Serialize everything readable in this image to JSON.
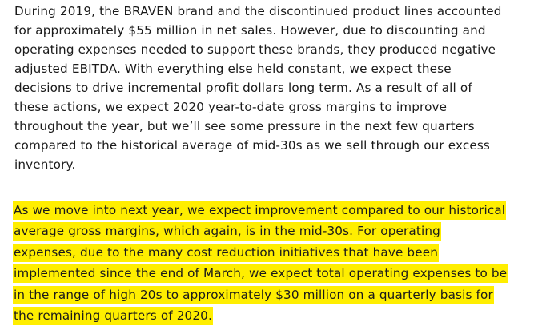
{
  "document": {
    "paragraph_1": {
      "lines": [
        "During 2019, the BRAVEN brand and the discontinued product lines accounted",
        "for approximately $55 million in net sales. However, due to discounting and",
        "operating expenses needed to support these brands, they produced negative",
        "adjusted EBITDA. With everything else held constant, we expect these",
        "decisions to drive incremental profit dollars long term. As a result of all of",
        "these actions, we expect 2020 year-to-date gross margins to improve",
        "throughout the year, but we’ll see some pressure in the next few quarters",
        "compared to the historical average of mid-30s as we sell through our excess",
        "inventory."
      ]
    },
    "paragraph_2": {
      "highlight_color": "#ffee00",
      "lines": [
        "As we move into next year, we expect improvement compared to our historical",
        "average gross margins, which again, is in the mid-30s. For operating",
        "expenses, due to the many cost reduction initiatives that have been",
        "implemented since the end of March, we expect total operating expenses to be",
        "in the range of high 20s to approximately $30 million on a quarterly basis for",
        "the remaining quarters of 2020."
      ]
    }
  }
}
